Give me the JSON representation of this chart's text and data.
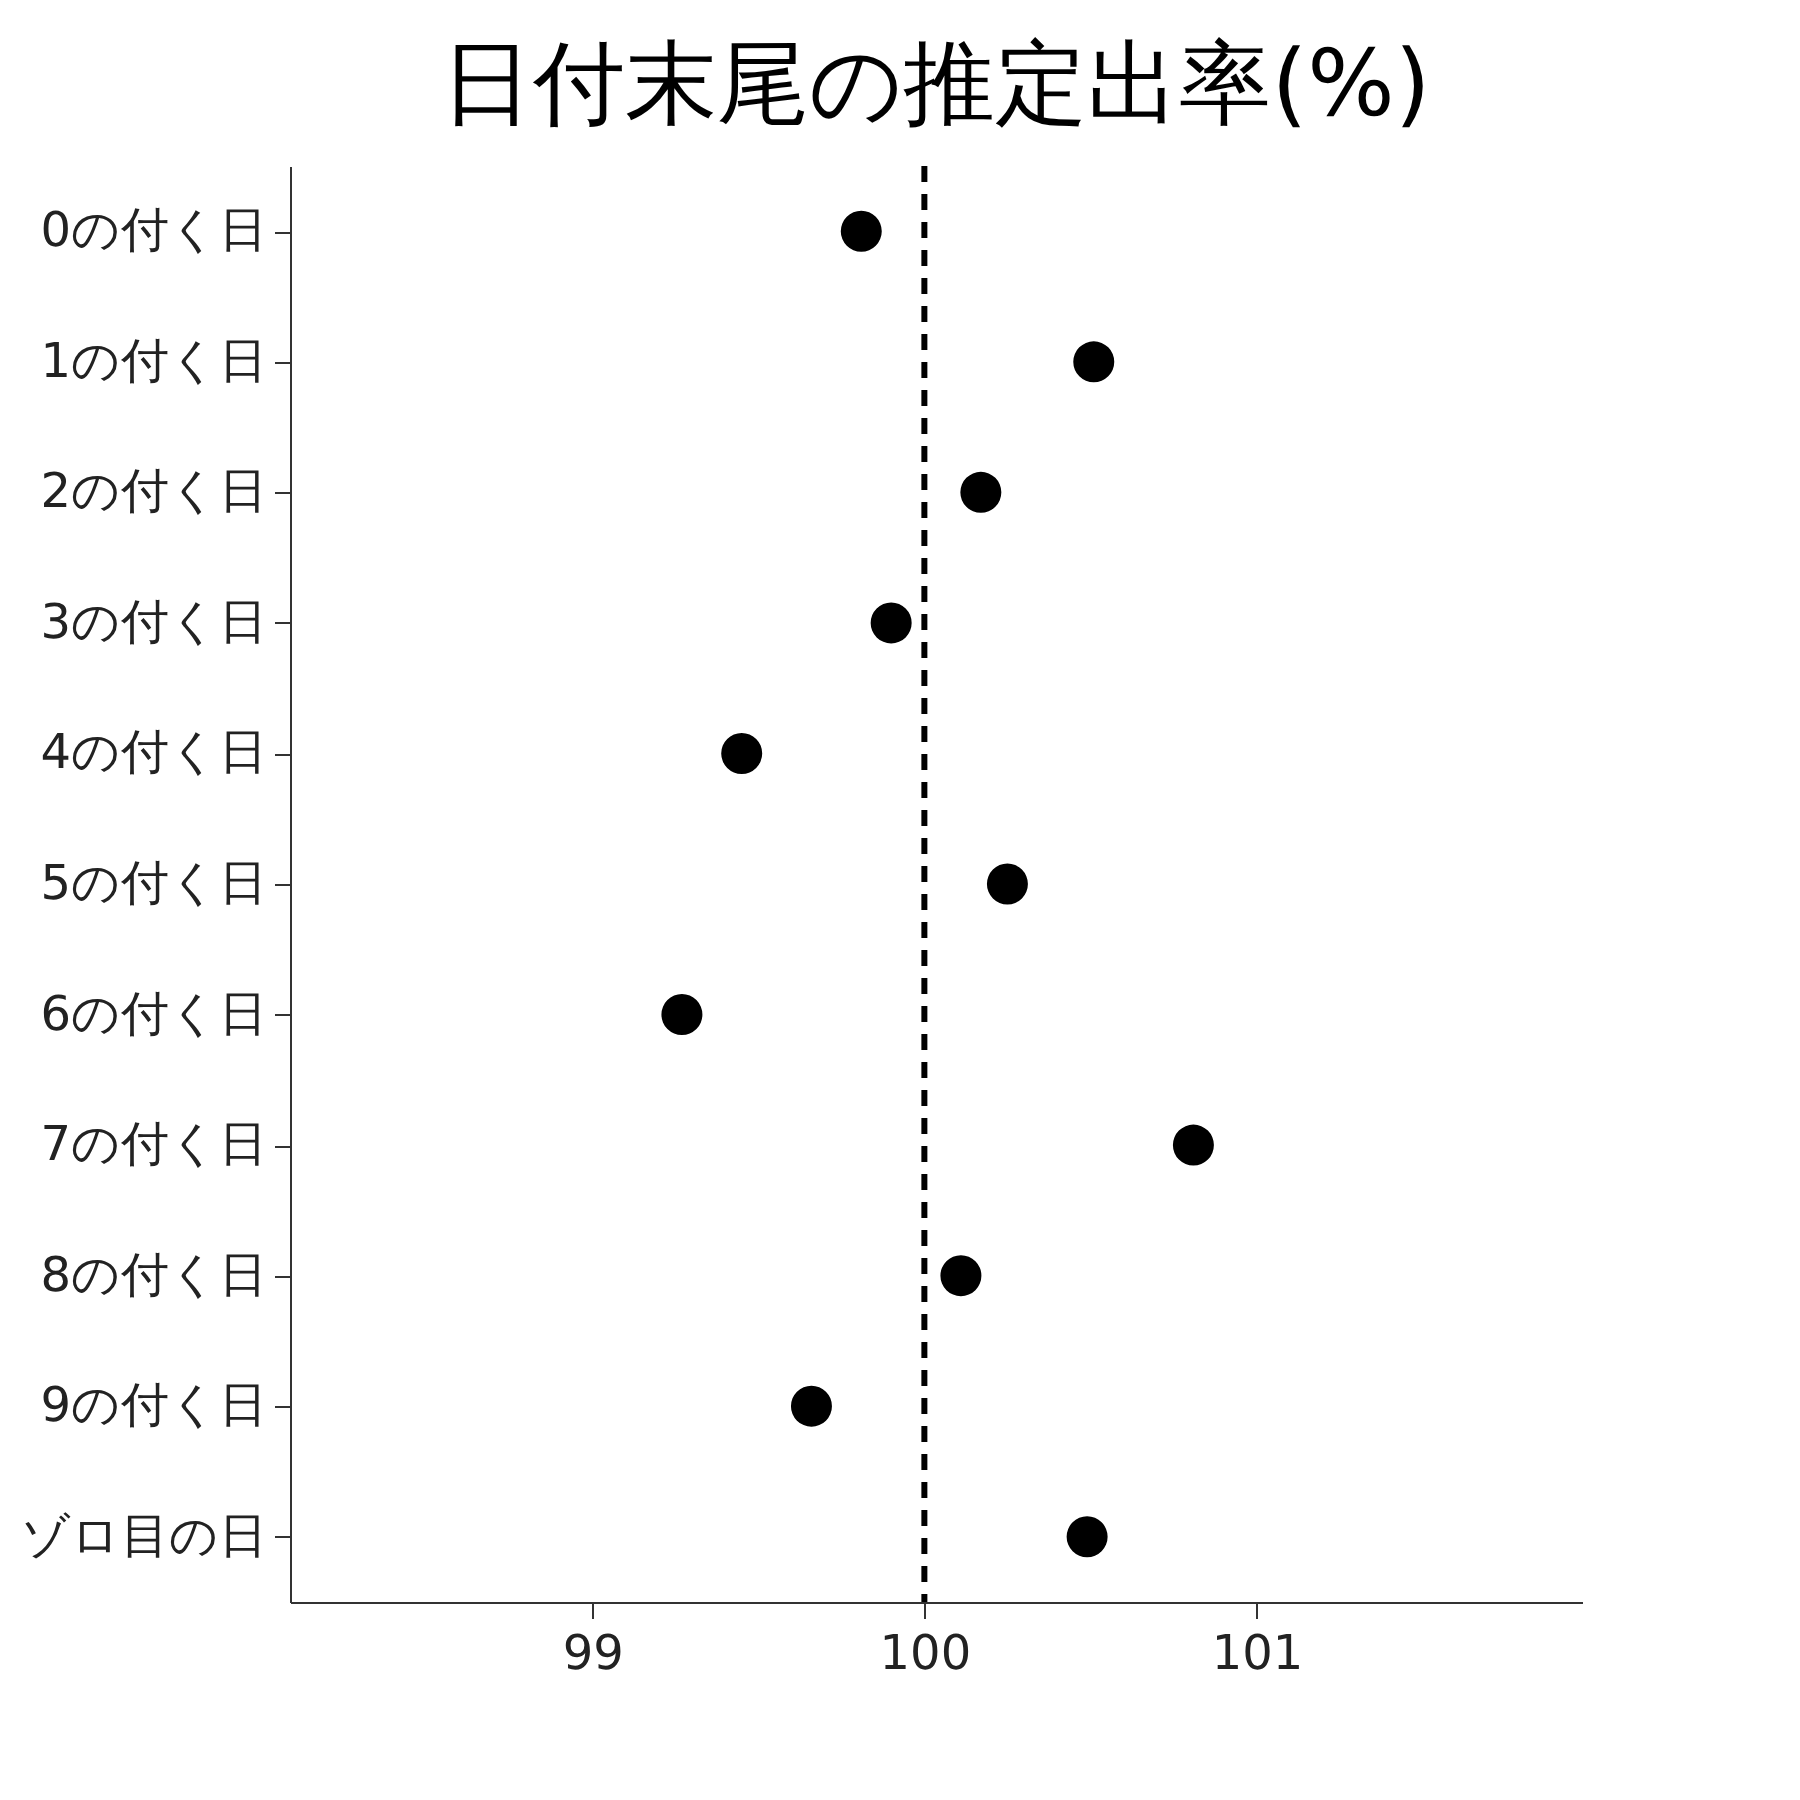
{
  "chart_data": {
    "type": "scatter",
    "title": "日付末尾の推定出率(%)",
    "orientation": "horizontal",
    "categories": [
      "0の付く日",
      "1の付く日",
      "2の付く日",
      "3の付く日",
      "4の付く日",
      "5の付く日",
      "6の付く日",
      "7の付く日",
      "8の付く日",
      "9の付く日",
      "ゾロ目の日"
    ],
    "series": [
      {
        "color": "#000000",
        "values": [
          99.81,
          100.51,
          100.17,
          99.9,
          99.45,
          100.25,
          99.27,
          100.81,
          100.11,
          99.66,
          100.49
        ]
      }
    ],
    "xlim": [
      98.09,
      101.98
    ],
    "xticks": [
      99,
      100,
      101
    ],
    "ref_lines": [
      {
        "axis": "x",
        "value": 100,
        "color": "#000000",
        "line_style": "dashed"
      }
    ],
    "grid": false,
    "marker": "circle"
  }
}
